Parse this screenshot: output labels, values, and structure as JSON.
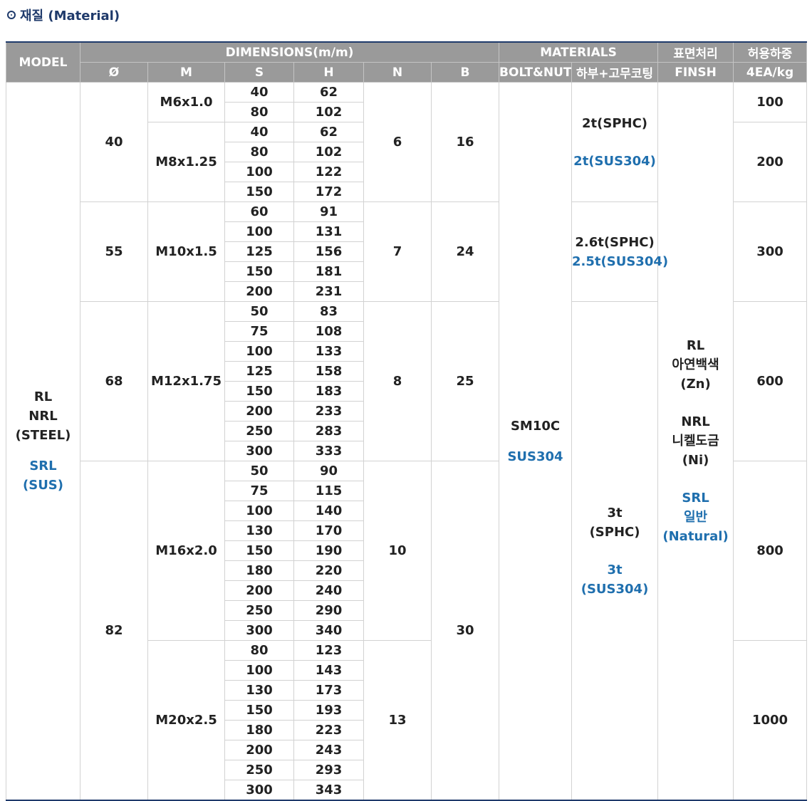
{
  "section": {
    "icon": "circle-dot-icon",
    "title": "재질 (Material)"
  },
  "header": {
    "model": "MODEL",
    "dimensions": "DIMENSIONS(m/m)",
    "materials": "MATERIALS",
    "surface": "표면처리",
    "load": "허용하중",
    "dia": "Ø",
    "m": "M",
    "s": "S",
    "h": "H",
    "n": "N",
    "b": "B",
    "bolt": "BOLT&NUT",
    "coating": "하부+고무코팅",
    "finish": "FINSH",
    "load_unit": "4EA/kg"
  },
  "model": {
    "line1": "RL",
    "line2": "NRL",
    "line3": "(STEEL)",
    "line4": "SRL",
    "line5": "(SUS)"
  },
  "dia": {
    "d40": "40",
    "d55": "55",
    "d68": "68",
    "d82": "82"
  },
  "m": {
    "m6": "M6x1.0",
    "m8": "M8x1.25",
    "m10": "M10x1.5",
    "m12": "M12x1.75",
    "m16": "M16x2.0",
    "m20": "M20x2.5"
  },
  "n": {
    "n40": "6",
    "n55": "7",
    "n68": "8",
    "n16": "10",
    "n20": "13"
  },
  "b": {
    "b40": "16",
    "b55": "24",
    "b68": "25",
    "b82": "30"
  },
  "bolt": {
    "steel": "SM10C",
    "sus": "SUS304"
  },
  "coating": {
    "c40_steel": "2t(SPHC)",
    "c40_sus": "2t(SUS304)",
    "c55_steel": "2.6t(SPHC)",
    "c55_sus": "2.5t(SUS304)",
    "c68_line1": "3t",
    "c68_line2": "(SPHC)",
    "c68_line3": "3t",
    "c68_line4": "(SUS304)"
  },
  "finish": {
    "rl": "RL",
    "rl_desc": "아연백색",
    "rl_code": "(Zn)",
    "nrl": "NRL",
    "nrl_desc": "니켈도금",
    "nrl_code": "(Ni)",
    "srl": "SRL",
    "srl_desc": "일반",
    "srl_code": "(Natural)"
  },
  "load": {
    "l1": "100",
    "l2": "200",
    "l3": "300",
    "l4": "600",
    "l5": "800",
    "l6": "1000"
  },
  "rows": [
    {
      "s": "40",
      "h": "62"
    },
    {
      "s": "80",
      "h": "102"
    },
    {
      "s": "40",
      "h": "62"
    },
    {
      "s": "80",
      "h": "102"
    },
    {
      "s": "100",
      "h": "122"
    },
    {
      "s": "150",
      "h": "172"
    },
    {
      "s": "60",
      "h": "91"
    },
    {
      "s": "100",
      "h": "131"
    },
    {
      "s": "125",
      "h": "156"
    },
    {
      "s": "150",
      "h": "181"
    },
    {
      "s": "200",
      "h": "231"
    },
    {
      "s": "50",
      "h": "83"
    },
    {
      "s": "75",
      "h": "108"
    },
    {
      "s": "100",
      "h": "133"
    },
    {
      "s": "125",
      "h": "158"
    },
    {
      "s": "150",
      "h": "183"
    },
    {
      "s": "200",
      "h": "233"
    },
    {
      "s": "250",
      "h": "283"
    },
    {
      "s": "300",
      "h": "333"
    },
    {
      "s": "50",
      "h": "90"
    },
    {
      "s": "75",
      "h": "115"
    },
    {
      "s": "100",
      "h": "140"
    },
    {
      "s": "130",
      "h": "170"
    },
    {
      "s": "150",
      "h": "190"
    },
    {
      "s": "180",
      "h": "220"
    },
    {
      "s": "200",
      "h": "240"
    },
    {
      "s": "250",
      "h": "290"
    },
    {
      "s": "300",
      "h": "340"
    },
    {
      "s": "80",
      "h": "123"
    },
    {
      "s": "100",
      "h": "143"
    },
    {
      "s": "130",
      "h": "173"
    },
    {
      "s": "150",
      "h": "193"
    },
    {
      "s": "180",
      "h": "223"
    },
    {
      "s": "200",
      "h": "243"
    },
    {
      "s": "250",
      "h": "293"
    },
    {
      "s": "300",
      "h": "343"
    }
  ]
}
